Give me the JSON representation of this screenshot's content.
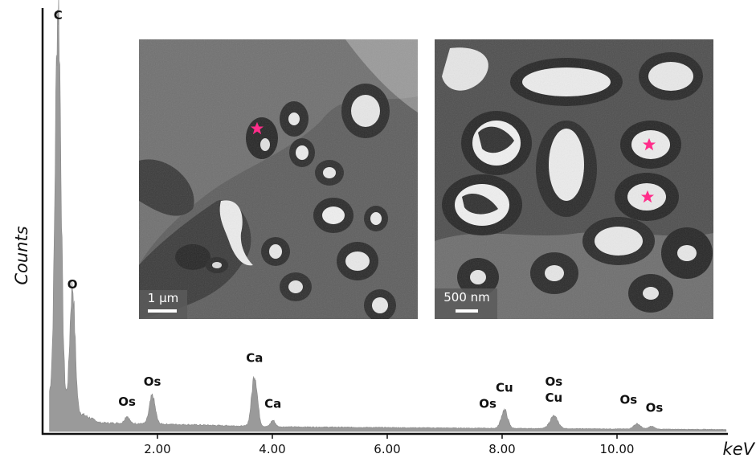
{
  "chart_data": {
    "type": "area",
    "xlabel": "keV",
    "ylabel": "Counts",
    "xlim": [
      0,
      12.0
    ],
    "ylim": [
      0,
      100
    ],
    "x_ticks": [
      {
        "value": 2.0,
        "label": "2.00"
      },
      {
        "value": 4.0,
        "label": "4.00"
      },
      {
        "value": 6.0,
        "label": "6.00"
      },
      {
        "value": 8.0,
        "label": "8.00"
      },
      {
        "value": 10.0,
        "label": "10.00"
      }
    ],
    "series": [
      {
        "color": "#9a9a9a",
        "peaks": [
          {
            "x": 0.27,
            "y": 100,
            "width": 0.05
          },
          {
            "x": 0.52,
            "y": 31,
            "width": 0.045
          },
          {
            "x": 1.47,
            "y": 1.8,
            "width": 0.04
          },
          {
            "x": 1.91,
            "y": 7.0,
            "width": 0.05
          },
          {
            "x": 3.69,
            "y": 13,
            "width": 0.05
          },
          {
            "x": 4.01,
            "y": 1.6,
            "width": 0.04
          },
          {
            "x": 8.04,
            "y": 4.6,
            "width": 0.055
          },
          {
            "x": 8.9,
            "y": 3.1,
            "width": 0.07
          },
          {
            "x": 10.35,
            "y": 1.3,
            "width": 0.06
          },
          {
            "x": 10.6,
            "y": 0.7,
            "width": 0.05
          }
        ],
        "background": [
          {
            "x": 0.15,
            "y": 9
          },
          {
            "x": 0.6,
            "y": 5
          },
          {
            "x": 1.0,
            "y": 2.2
          },
          {
            "x": 2.0,
            "y": 1.9
          },
          {
            "x": 4.0,
            "y": 1.2
          },
          {
            "x": 8.0,
            "y": 0.8
          },
          {
            "x": 12.0,
            "y": 0.5
          }
        ]
      }
    ],
    "annotations": [
      {
        "text": "C",
        "x": 0.27,
        "y": 104
      },
      {
        "text": "O",
        "x": 0.52,
        "y": 36
      },
      {
        "text": "Os",
        "x": 1.47,
        "y": 6.5
      },
      {
        "text": "Os",
        "x": 1.91,
        "y": 11.5
      },
      {
        "text": "Ca",
        "x": 3.69,
        "y": 17.5
      },
      {
        "text": "Ca",
        "x": 4.01,
        "y": 6
      },
      {
        "text": "Cu",
        "x": 8.04,
        "y": 10
      },
      {
        "text": "Os",
        "x": 7.75,
        "y": 6
      },
      {
        "text": "Os",
        "x": 8.9,
        "y": 11.5
      },
      {
        "text": "Cu",
        "x": 8.9,
        "y": 7.5
      },
      {
        "text": "Os",
        "x": 10.2,
        "y": 7
      },
      {
        "text": "Os",
        "x": 10.65,
        "y": 5
      }
    ]
  },
  "insets": [
    {
      "scale_bar": "1 µm",
      "marker_color": "#ff2d8a",
      "marker_count": 1
    },
    {
      "scale_bar": "500 nm",
      "marker_color": "#ff2d8a",
      "marker_count": 2
    }
  ]
}
